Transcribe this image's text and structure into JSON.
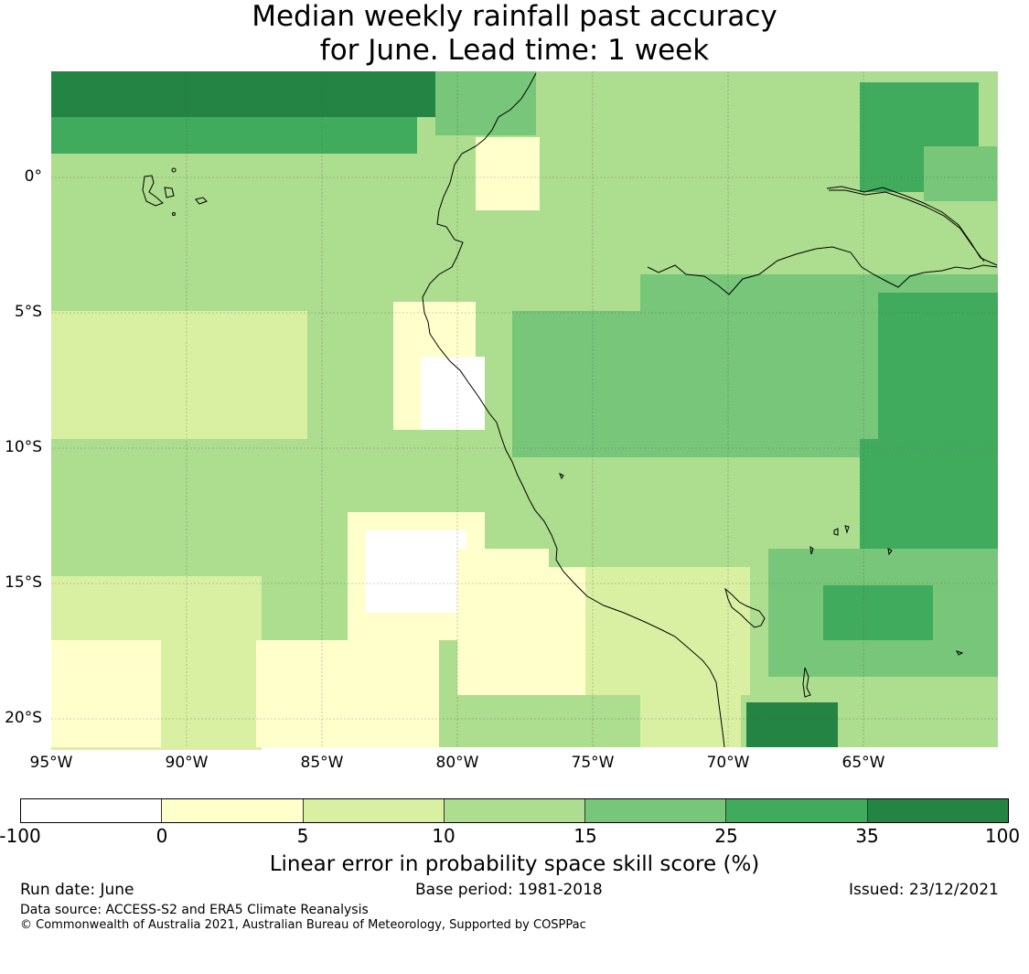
{
  "title": {
    "line1": "Median weekly rainfall past accuracy",
    "line2": "for June. Lead time: 1 week"
  },
  "axes": {
    "lat_labels": [
      "0°",
      "5°S",
      "10°S",
      "15°S",
      "20°S"
    ],
    "lon_labels": [
      "95°W",
      "90°W",
      "85°W",
      "80°W",
      "75°W",
      "70°W",
      "65°W"
    ]
  },
  "colorbar": {
    "ticks": [
      "-100",
      "0",
      "5",
      "10",
      "15",
      "25",
      "35",
      "100"
    ],
    "colors": [
      "#ffffff",
      "#ffffcc",
      "#d9f0a3",
      "#addd8e",
      "#78c679",
      "#41ab5d",
      "#238443"
    ],
    "label": "Linear error in probability space skill score (%)"
  },
  "footer": {
    "run_date": "Run date: June",
    "base_period": "Base period: 1981-2018",
    "issued": "Issued: 23/12/2021",
    "data_source": "Data source: ACCESS-S2 and ERA5 Climate Reanalysis",
    "copyright": "© Commonwealth of Australia 2021, Australian Bureau of Meteorology, Supported by COSPPac"
  }
}
